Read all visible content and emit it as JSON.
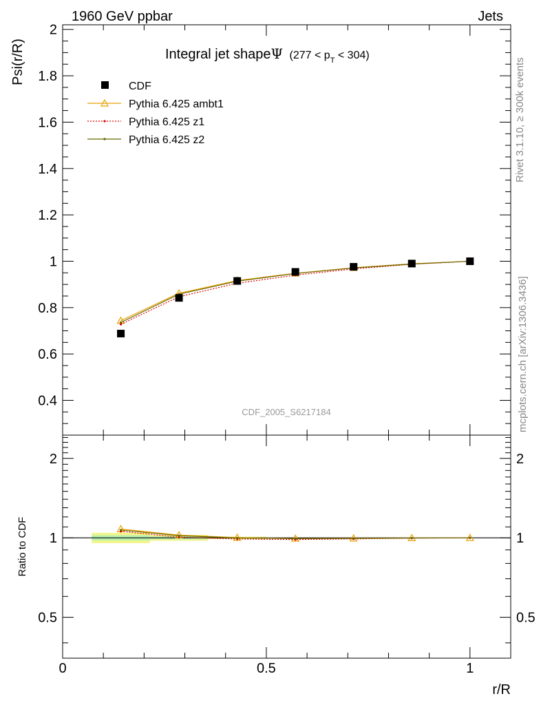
{
  "header": {
    "left": "1960 GeV ppbar",
    "right": "Jets"
  },
  "side_labels": {
    "rivet": "Rivet 3.1.10, ≥ 300k events",
    "mcplots": "mcplots.cern.ch [arXiv:1306.3436]"
  },
  "watermark": "CDF_2005_S6217184",
  "chart_data": [
    {
      "type": "scatter",
      "panel": "main",
      "title": "Integral jet shape",
      "title_symbol": "Ψ",
      "title_range": {
        "prefix": "(277 < p",
        "sub": "T",
        "suffix": " < 304)"
      },
      "ylabel": "Psi(r/R)",
      "xlim": [
        0,
        1.1
      ],
      "ylim": [
        0.25,
        2.02
      ],
      "yticks": [
        {
          "v": 0.4,
          "label": "0.4"
        },
        {
          "v": 0.6,
          "label": "0.6"
        },
        {
          "v": 0.8,
          "label": "0.8"
        },
        {
          "v": 1.0,
          "label": "1"
        },
        {
          "v": 1.2,
          "label": "1.2"
        },
        {
          "v": 1.4,
          "label": "1.4"
        },
        {
          "v": 1.6,
          "label": "1.6"
        },
        {
          "v": 1.8,
          "label": "1.8"
        },
        {
          "v": 2.0,
          "label": "2"
        }
      ],
      "x": [
        0.1429,
        0.2857,
        0.4286,
        0.5714,
        0.7143,
        0.8571,
        1.0
      ],
      "legend_placement": "top-left",
      "series": [
        {
          "name": "CDF",
          "style": "data",
          "color": "#000000",
          "values": [
            0.688,
            0.842,
            0.915,
            0.954,
            0.976,
            0.99,
            1.0
          ]
        },
        {
          "name": "Pythia 6.425 ambt1",
          "style": "triangle",
          "color": "#e8a100",
          "values": [
            0.744,
            0.862,
            0.917,
            0.948,
            0.972,
            0.989,
            1.0
          ]
        },
        {
          "name": "Pythia 6.425 z1",
          "style": "dotted",
          "color": "#dd0000",
          "values": [
            0.728,
            0.847,
            0.905,
            0.94,
            0.967,
            0.987,
            1.0
          ]
        },
        {
          "name": "Pythia 6.425 z2",
          "style": "solid",
          "color": "#666600",
          "values": [
            0.736,
            0.858,
            0.914,
            0.947,
            0.971,
            0.988,
            1.0
          ]
        }
      ]
    },
    {
      "type": "line",
      "panel": "ratio",
      "ylabel": "Ratio to CDF",
      "xlabel": "r/R",
      "scale": "log",
      "xlim": [
        0,
        1.1
      ],
      "ylim": [
        0.35,
        2.45
      ],
      "yticks": [
        {
          "v": 0.5,
          "label": "0.5"
        },
        {
          "v": 1.0,
          "label": "1"
        },
        {
          "v": 2.0,
          "label": "2"
        }
      ],
      "xticks": [
        {
          "v": 0,
          "label": "0"
        },
        {
          "v": 0.5,
          "label": "0.5"
        },
        {
          "v": 1.0,
          "label": "1"
        }
      ],
      "x": [
        0.1429,
        0.2857,
        0.4286,
        0.5714,
        0.7143,
        0.8571,
        1.0
      ],
      "uncertainty_band": {
        "outer_color": "#f2f58a",
        "inner_color": "#b8f0b0",
        "segments": [
          {
            "x0": 0.0714,
            "x1": 0.2143,
            "lo": 0.955,
            "hi": 1.045
          },
          {
            "x0": 0.2143,
            "x1": 0.3571,
            "lo": 0.975,
            "hi": 1.025
          },
          {
            "x0": 0.3571,
            "x1": 0.5,
            "lo": 0.99,
            "hi": 1.01
          }
        ]
      },
      "series": [
        {
          "name": "Pythia 6.425 ambt1",
          "style": "triangle",
          "color": "#e8a100",
          "values": [
            1.08,
            1.024,
            1.002,
            0.994,
            0.996,
            0.999,
            1.0
          ]
        },
        {
          "name": "Pythia 6.425 z1",
          "style": "dotted",
          "color": "#dd0000",
          "values": [
            1.058,
            1.006,
            0.99,
            0.985,
            0.991,
            0.997,
            1.0
          ]
        },
        {
          "name": "Pythia 6.425 z2",
          "style": "solid",
          "color": "#666600",
          "values": [
            1.07,
            1.019,
            0.999,
            0.993,
            0.995,
            0.998,
            1.0
          ]
        }
      ]
    }
  ]
}
